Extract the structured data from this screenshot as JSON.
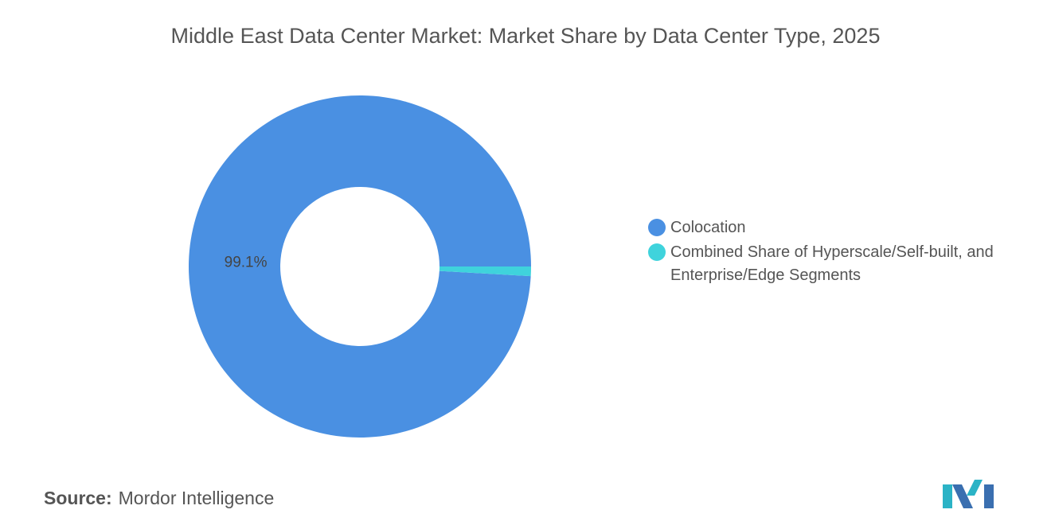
{
  "chart_data": {
    "type": "pie",
    "title": "Middle East Data Center Market: Market Share by Data Center Type, 2025",
    "categories": [
      "Colocation",
      "Combined Share of Hyperscale/Self-built, and Enterprise/Edge Segments"
    ],
    "values": [
      99.1,
      0.9
    ],
    "value_labels": [
      "99.1%",
      null
    ],
    "colors": [
      "#4a90e2",
      "#3fd3dc"
    ],
    "legend": "right"
  },
  "source_label": "Source:",
  "source": "Mordor Intelligence"
}
